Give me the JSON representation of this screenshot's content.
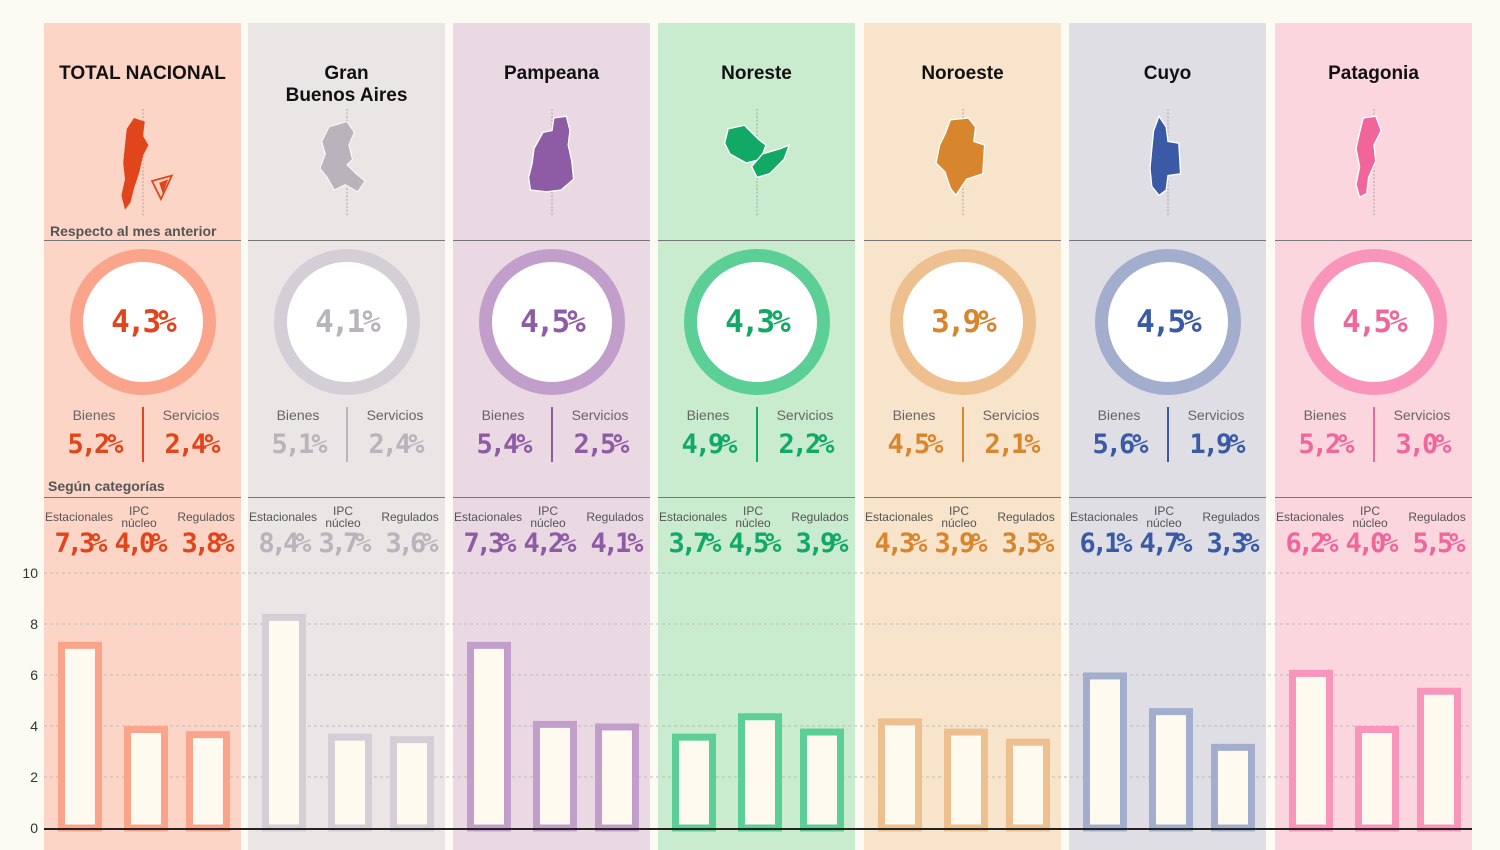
{
  "row_labels": {
    "monthly": "Respecto al mes anterior",
    "categories": "Según categorías"
  },
  "sub_labels": {
    "goods": "Bienes",
    "services": "Servicios"
  },
  "category_labels": {
    "seasonal": "Estacionales",
    "core": "IPC\nnúcleo",
    "regulated": "Regulados"
  },
  "regions": [
    {
      "title": "TOTAL NACIONAL",
      "total": "4,3%",
      "goods": "5,2%",
      "services": "2,4%",
      "seasonal": "7,3%",
      "core": "4,0%",
      "regulated": "3,8%",
      "bg": "#fdd5c7",
      "color": "#e1451c",
      "ring": "#f9a48b",
      "bar": "#f9a48b"
    },
    {
      "title": "Gran\nBuenos Aires",
      "total": "4,1%",
      "goods": "5,1%",
      "services": "2,4%",
      "seasonal": "8,4%",
      "core": "3,7%",
      "regulated": "3,6%",
      "bg": "#e9e6e5",
      "color": "#b9b4bb",
      "ring": "#d4ced6",
      "bar": "#d4ced6"
    },
    {
      "title": "Pampeana",
      "total": "4,5%",
      "goods": "5,4%",
      "services": "2,5%",
      "seasonal": "7,3%",
      "core": "4,2%",
      "regulated": "4,1%",
      "bg": "#ead9e3",
      "color": "#8e5ba5",
      "ring": "#c29fcb",
      "bar": "#c29fcb"
    },
    {
      "title": "Noreste",
      "total": "4,3%",
      "goods": "4,9%",
      "services": "2,2%",
      "seasonal": "3,7%",
      "core": "4,5%",
      "regulated": "3,9%",
      "bg": "#c9ebce",
      "color": "#12a866",
      "ring": "#5ccf97",
      "bar": "#5ccf97"
    },
    {
      "title": "Noroeste",
      "total": "3,9%",
      "goods": "4,5%",
      "services": "2,1%",
      "seasonal": "4,3%",
      "core": "3,9%",
      "regulated": "3,5%",
      "bg": "#f8e3cb",
      "color": "#d8862e",
      "ring": "#eebf8f",
      "bar": "#eebf8f"
    },
    {
      "title": "Cuyo",
      "total": "4,5%",
      "goods": "5,6%",
      "services": "1,9%",
      "seasonal": "6,1%",
      "core": "4,7%",
      "regulated": "3,3%",
      "bg": "#dfdee4",
      "color": "#3a5aa5",
      "ring": "#a3adcd",
      "bar": "#a3adcd"
    },
    {
      "title": "Patagonia",
      "total": "4,5%",
      "goods": "5,2%",
      "services": "3,0%",
      "seasonal": "6,2%",
      "core": "4,0%",
      "regulated": "5,5%",
      "bg": "#fcd6de",
      "color": "#f0669a",
      "ring": "#f995ba",
      "bar": "#f995ba"
    }
  ],
  "chart_data": {
    "type": "bar",
    "categories": [
      "Estacionales",
      "IPC núcleo",
      "Regulados"
    ],
    "ylim": [
      0,
      10
    ],
    "yticks": [
      "0",
      "2",
      "4",
      "6",
      "8",
      "10"
    ],
    "grid": true,
    "series": [
      {
        "name": "TOTAL NACIONAL",
        "values": [
          7.3,
          4.0,
          3.8
        ]
      },
      {
        "name": "Gran Buenos Aires",
        "values": [
          8.4,
          3.7,
          3.6
        ]
      },
      {
        "name": "Pampeana",
        "values": [
          7.3,
          4.2,
          4.1
        ]
      },
      {
        "name": "Noreste",
        "values": [
          3.7,
          4.5,
          3.9
        ]
      },
      {
        "name": "Noroeste",
        "values": [
          4.3,
          3.9,
          3.5
        ]
      },
      {
        "name": "Cuyo",
        "values": [
          6.1,
          4.7,
          3.3
        ]
      },
      {
        "name": "Patagonia",
        "values": [
          6.2,
          4.0,
          5.5
        ]
      }
    ]
  }
}
